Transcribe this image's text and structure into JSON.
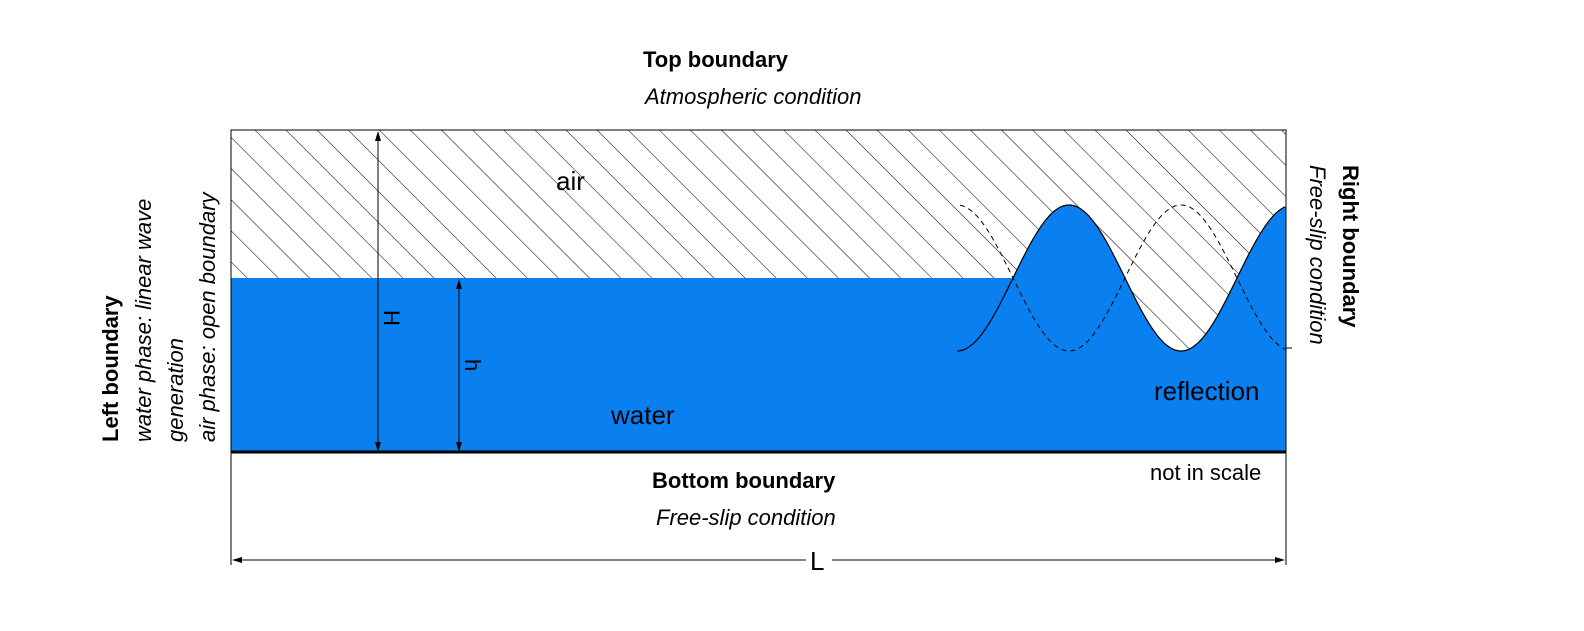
{
  "top": {
    "title": "Top boundary",
    "condition": "Atmospheric condition"
  },
  "bottom": {
    "title": "Bottom boundary",
    "condition": "Free-slip condition"
  },
  "left": {
    "title": "Left boundary",
    "line1": "water phase: linear wave",
    "line2": "generation",
    "line3": "air phase: open boundary"
  },
  "right": {
    "title": "Right boundary",
    "condition": "Free-slip condition"
  },
  "labels": {
    "air": "air",
    "water": "water",
    "reflection": "reflection",
    "not_in_scale": "not in scale",
    "H": "H",
    "h": "h",
    "L": "L"
  },
  "colors": {
    "water": "#0a7ff0",
    "lines": "#000000",
    "hatch": "#000000"
  }
}
